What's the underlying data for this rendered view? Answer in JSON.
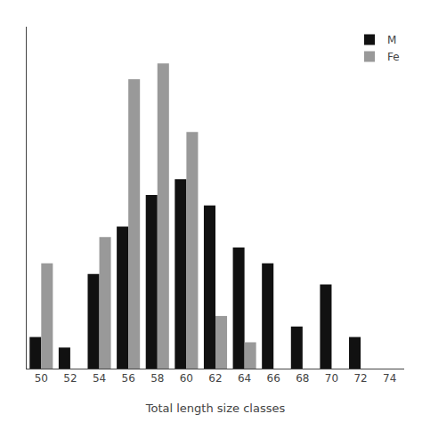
{
  "chart_data": {
    "type": "bar",
    "xlabel": "Total length size classes",
    "categories": [
      50,
      52,
      54,
      56,
      58,
      60,
      62,
      64,
      66,
      68,
      70,
      72,
      74
    ],
    "series": [
      {
        "name": "M",
        "color": "#111111",
        "values": [
          6,
          4,
          18,
          27,
          33,
          36,
          31,
          23,
          20,
          8,
          16,
          6,
          0
        ]
      },
      {
        "name": "Fe",
        "color": "#999999",
        "values": [
          20,
          0,
          25,
          55,
          58,
          45,
          10,
          5,
          0,
          0,
          0,
          0,
          0
        ]
      }
    ],
    "ylim": [
      0,
      65
    ],
    "yticks": [],
    "grid": false,
    "legend": "upper right",
    "tick_labels": "x"
  }
}
